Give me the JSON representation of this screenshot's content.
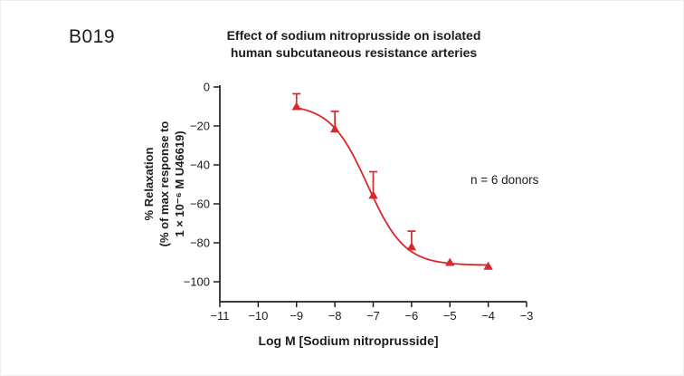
{
  "figure": {
    "label": "B019"
  },
  "chart_data": {
    "type": "scatter",
    "subtype": "dose-response curve with error bars",
    "title_lines": [
      "Effect of sodium nitroprusside on isolated",
      "human subcutaneous resistance arteries"
    ],
    "xlabel": "Log M [Sodium nitroprusside]",
    "ylabel_lines": [
      "% Relaxation",
      "(% of max response to",
      "1 × 10⁻⁶ M U46619)"
    ],
    "annotation": "n = 6 donors",
    "xlim": [
      -11,
      -3
    ],
    "ylim": [
      -100,
      0
    ],
    "x_ticks": [
      -11,
      -10,
      -9,
      -8,
      -7,
      -6,
      -5,
      -4,
      -3
    ],
    "y_ticks": [
      0,
      -20,
      -40,
      -60,
      -80,
      -100
    ],
    "grid": false,
    "legend": "none",
    "colors": {
      "series": "#d9282b",
      "axis": "#231f20",
      "text": "#1c1c1c"
    },
    "series": [
      {
        "name": "Sodium nitroprusside",
        "marker": "triangle-up",
        "x": [
          -9,
          -8,
          -7,
          -6,
          -5,
          -4
        ],
        "y": [
          -10,
          -21.5,
          -55.5,
          -82,
          -90,
          -92
        ],
        "error_up": [
          6.5,
          9,
          12,
          8,
          0,
          0
        ],
        "error_down": [
          0,
          0,
          0,
          0,
          0,
          0
        ]
      }
    ],
    "curve_fit": {
      "model": "sigmoidal log(dose)-response",
      "plateau_low_conc": -9,
      "plateau_high_conc": -91.5,
      "log_ec50": -7.15,
      "hill_slope": 0.9,
      "x_start": -9,
      "x_end": -4
    }
  }
}
